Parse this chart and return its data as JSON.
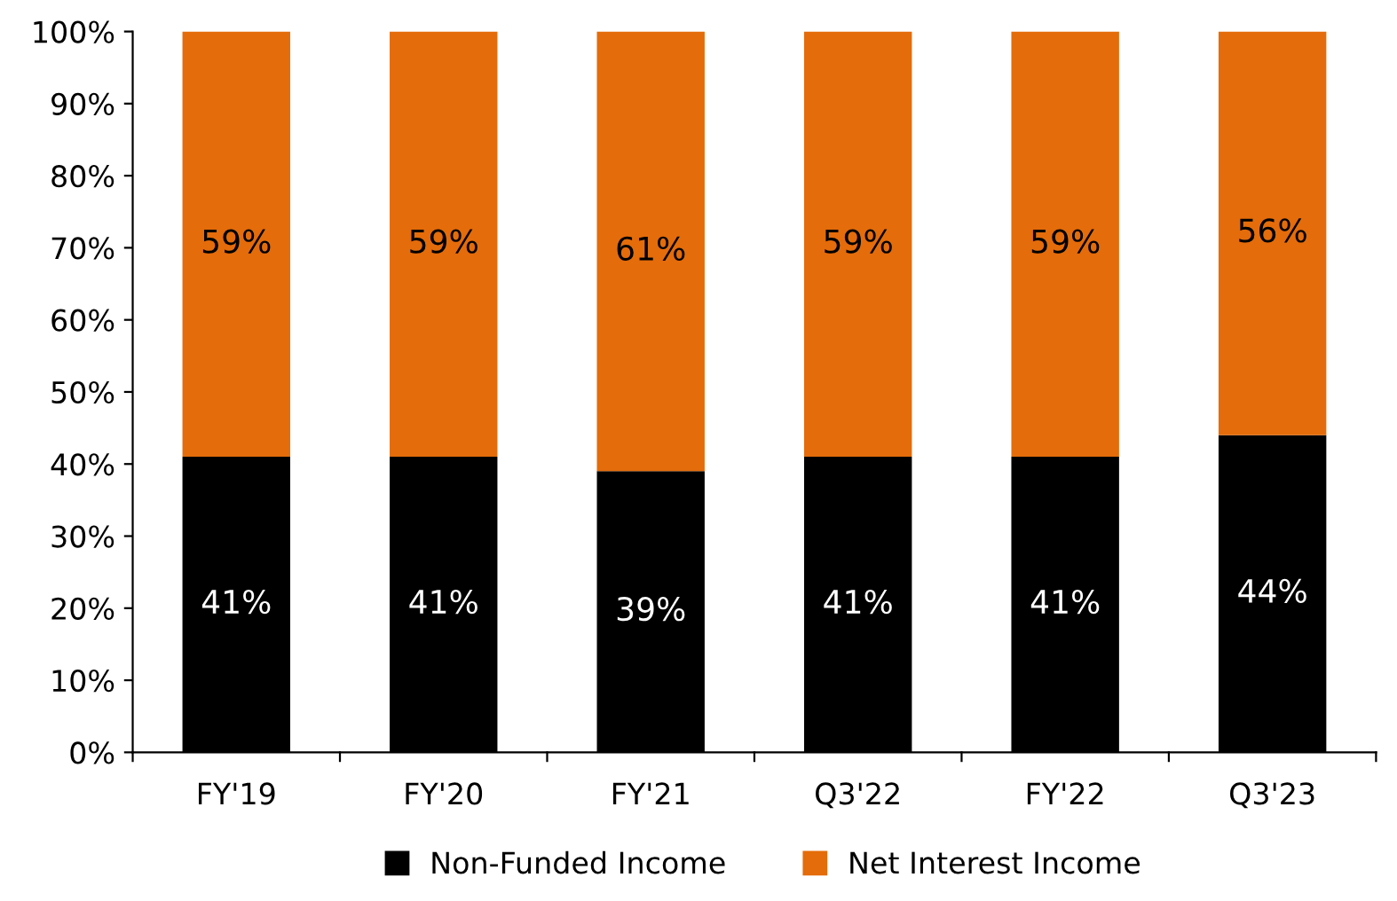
{
  "chart_data": {
    "type": "bar",
    "stacked": true,
    "categories": [
      "FY'19",
      "FY'20",
      "FY'21",
      "Q3'22",
      "FY'22",
      "Q3'23"
    ],
    "series": [
      {
        "name": "Non-Funded Income",
        "color": "#000000",
        "values": [
          41,
          41,
          39,
          41,
          41,
          44
        ],
        "value_labels": [
          "41%",
          "41%",
          "39%",
          "41%",
          "41%",
          "44%"
        ]
      },
      {
        "name": "Net Interest Income",
        "color": "#e46c0a",
        "values": [
          59,
          59,
          61,
          59,
          59,
          56
        ],
        "value_labels": [
          "59%",
          "59%",
          "61%",
          "59%",
          "59%",
          "56%"
        ]
      }
    ],
    "ylim": [
      0,
      100
    ],
    "yticks": [
      {
        "value": 0,
        "label": "0%"
      },
      {
        "value": 10,
        "label": "10%"
      },
      {
        "value": 20,
        "label": "20%"
      },
      {
        "value": 30,
        "label": "30%"
      },
      {
        "value": 40,
        "label": "40%"
      },
      {
        "value": 50,
        "label": "50%"
      },
      {
        "value": 60,
        "label": "60%"
      },
      {
        "value": 70,
        "label": "70%"
      },
      {
        "value": 80,
        "label": "80%"
      },
      {
        "value": 90,
        "label": "90%"
      },
      {
        "value": 100,
        "label": "100%"
      }
    ],
    "grid": false,
    "legend": "bottom"
  }
}
